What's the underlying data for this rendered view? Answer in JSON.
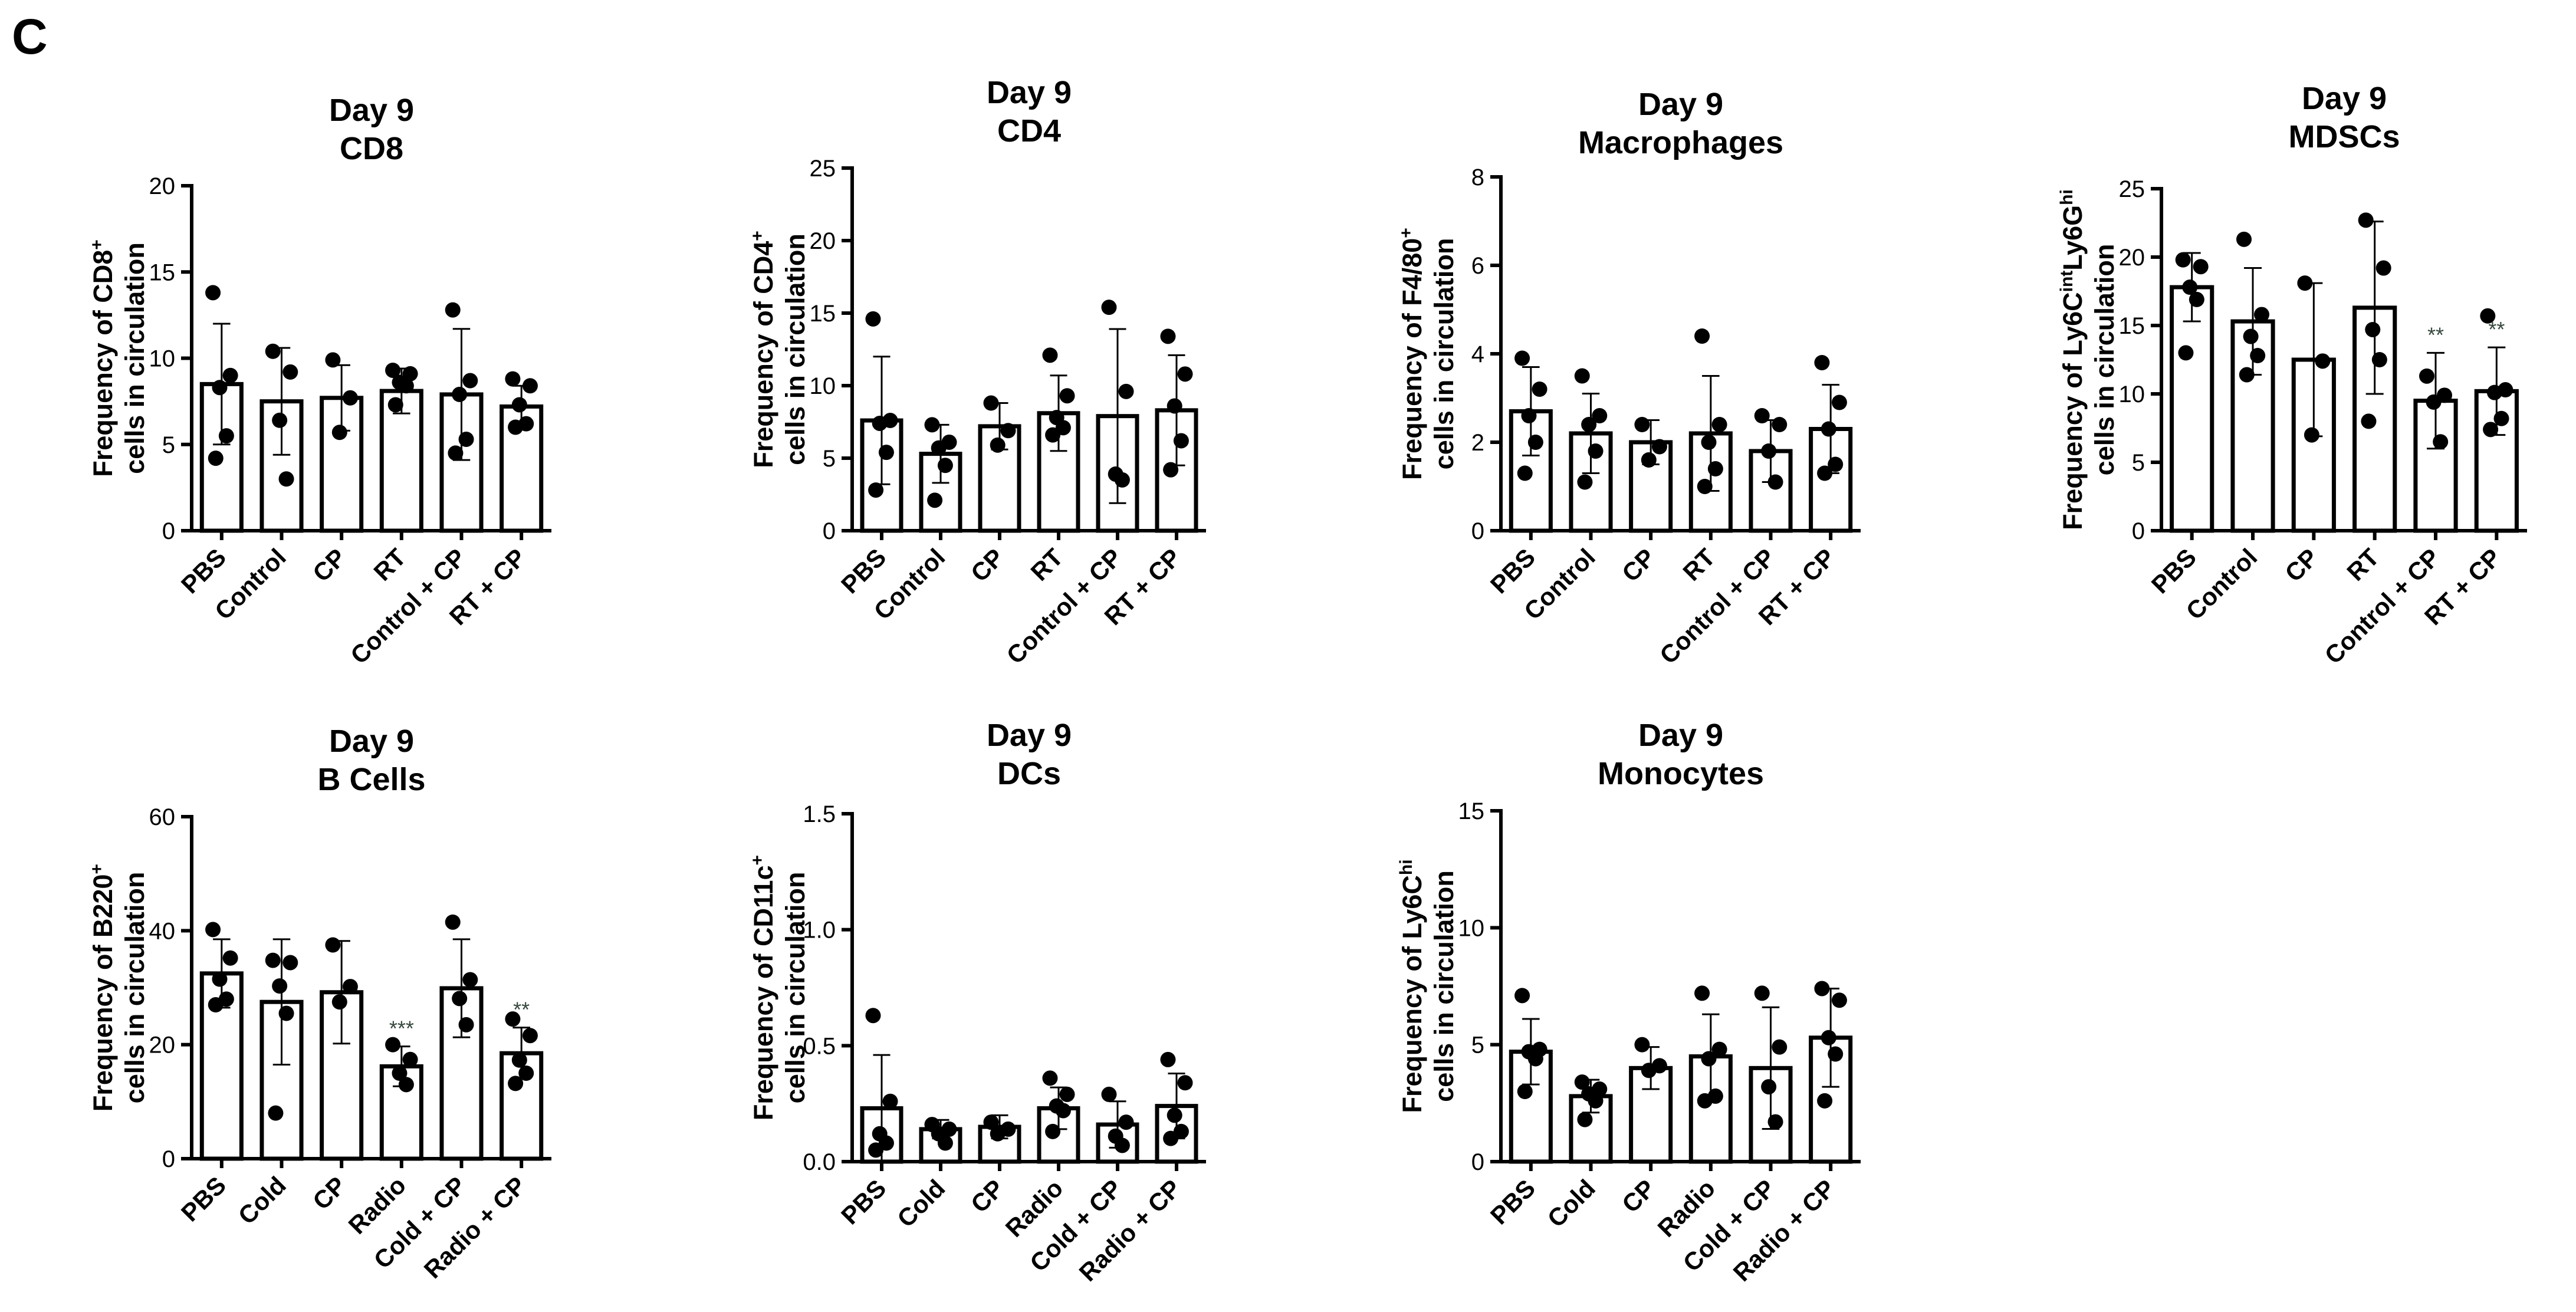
{
  "panel_label": "C",
  "chart_data": [
    {
      "type": "bar",
      "title": "Day 9",
      "subtitle": "CD8",
      "ylabel": [
        "Frequency of CD8",
        "cells in circulation"
      ],
      "ylabel_sup": "+",
      "ylim": [
        0,
        20
      ],
      "yticks": [
        0,
        5,
        10,
        15,
        20
      ],
      "categories": [
        "PBS",
        "Control",
        "CP",
        "RT",
        "Control + CP",
        "RT + CP"
      ],
      "values": [
        8.5,
        7.5,
        7.7,
        8.1,
        7.9,
        7.2
      ],
      "error": [
        3.5,
        3.1,
        1.9,
        1.3,
        3.8,
        1.2
      ],
      "points": [
        [
          13.8,
          9.0,
          8.3,
          5.5,
          4.2
        ],
        [
          10.4,
          9.2,
          6.4,
          3.0
        ],
        [
          9.9,
          7.7,
          5.7
        ],
        [
          9.3,
          9.1,
          8.6,
          8.4,
          7.3
        ],
        [
          12.8,
          8.7,
          7.9,
          5.3,
          4.5
        ],
        [
          8.8,
          8.4,
          7.3,
          6.2,
          6.0
        ]
      ],
      "significance": [
        "",
        "",
        "",
        "",
        "",
        ""
      ]
    },
    {
      "type": "bar",
      "title": "Day 9",
      "subtitle": "CD4",
      "ylabel": [
        "Frequency of CD4",
        "cells in circulation"
      ],
      "ylabel_sup": "+",
      "ylim": [
        0,
        25
      ],
      "yticks": [
        0,
        5,
        10,
        15,
        20,
        25
      ],
      "categories": [
        "PBS",
        "Control",
        "CP",
        "RT",
        "Control + CP",
        "RT + CP"
      ],
      "values": [
        7.6,
        5.3,
        7.2,
        8.1,
        7.9,
        8.3
      ],
      "error": [
        4.4,
        2.0,
        1.6,
        2.6,
        6.0,
        3.8
      ],
      "points": [
        [
          14.6,
          7.6,
          7.4,
          5.4,
          2.8
        ],
        [
          7.3,
          6.1,
          5.7,
          4.5,
          2.1
        ],
        [
          8.8,
          6.9,
          5.9
        ],
        [
          12.1,
          9.3,
          7.8,
          7.1,
          6.6
        ],
        [
          15.4,
          9.6,
          3.9,
          3.5
        ],
        [
          13.4,
          10.8,
          8.6,
          6.2,
          4.2
        ]
      ],
      "significance": [
        "",
        "",
        "",
        "",
        "",
        ""
      ]
    },
    {
      "type": "bar",
      "title": "Day 9",
      "subtitle": "Macrophages",
      "ylabel": [
        "Frequency of F4/80",
        "cells in circulation"
      ],
      "ylabel_sup": "+",
      "ylim": [
        0,
        8
      ],
      "yticks": [
        0,
        2,
        4,
        6,
        8
      ],
      "categories": [
        "PBS",
        "Control",
        "CP",
        "RT",
        "Control + CP",
        "RT + CP"
      ],
      "values": [
        2.7,
        2.2,
        2.0,
        2.2,
        1.8,
        2.3
      ],
      "error": [
        1.0,
        0.9,
        0.5,
        1.3,
        0.7,
        1.0
      ],
      "points": [
        [
          3.9,
          3.2,
          2.6,
          2.0,
          1.3
        ],
        [
          3.5,
          2.6,
          2.4,
          1.8,
          1.1
        ],
        [
          2.4,
          1.9,
          1.6
        ],
        [
          4.4,
          2.4,
          2.0,
          1.4,
          1.0
        ],
        [
          2.6,
          2.4,
          1.8,
          1.1
        ],
        [
          3.8,
          2.9,
          2.3,
          1.5,
          1.3
        ]
      ],
      "significance": [
        "",
        "",
        "",
        "",
        "",
        ""
      ]
    },
    {
      "type": "bar",
      "title": "Day 9",
      "subtitle": "MDSCs",
      "ylabel": [
        "Frequency of Ly6C",
        "cells in circulation"
      ],
      "ylabel_parts": [
        "int",
        "Ly6G",
        "hi"
      ],
      "ylim": [
        0,
        25
      ],
      "yticks": [
        0,
        5,
        10,
        15,
        20,
        25
      ],
      "categories": [
        "PBS",
        "Control",
        "CP",
        "RT",
        "Control + CP",
        "RT + CP"
      ],
      "values": [
        17.8,
        15.3,
        12.5,
        16.3,
        9.5,
        10.2
      ],
      "error": [
        2.5,
        3.9,
        5.6,
        6.3,
        3.5,
        3.2
      ],
      "points": [
        [
          19.8,
          19.3,
          17.8,
          16.9,
          13.0
        ],
        [
          21.3,
          15.8,
          14.2,
          12.8,
          11.4
        ],
        [
          18.1,
          12.4,
          7.0
        ],
        [
          22.7,
          19.2,
          14.7,
          12.5,
          8.0
        ],
        [
          11.3,
          9.9,
          9.4,
          6.5
        ],
        [
          15.7,
          10.3,
          10.1,
          8.2,
          7.4
        ]
      ],
      "significance": [
        "",
        "",
        "",
        "",
        "**",
        "**"
      ]
    },
    {
      "type": "bar",
      "title": "Day 9",
      "subtitle": "B Cells",
      "ylabel": [
        "Frequency of B220",
        "cells in circulation"
      ],
      "ylabel_sup": "+",
      "ylim": [
        0,
        60
      ],
      "yticks": [
        0,
        20,
        40,
        60
      ],
      "categories": [
        "PBS",
        "Cold",
        "CP",
        "Radio",
        "Cold + CP",
        "Radio + CP"
      ],
      "values": [
        32.5,
        27.5,
        29.2,
        16.2,
        29.9,
        18.5
      ],
      "error": [
        6.0,
        11.0,
        9.0,
        3.5,
        8.6,
        4.5
      ],
      "points": [
        [
          40.2,
          35.2,
          31.5,
          28.0,
          27.0
        ],
        [
          34.8,
          34.4,
          30.3,
          25.5,
          8.0
        ],
        [
          37.5,
          30.2,
          27.5
        ],
        [
          20.0,
          17.4,
          15.0,
          13.0
        ],
        [
          41.5,
          31.4,
          28.1,
          23.5
        ],
        [
          24.5,
          21.6,
          17.3,
          15.0,
          13.2
        ]
      ],
      "significance": [
        "",
        "",
        "",
        "***",
        "",
        "**"
      ]
    },
    {
      "type": "bar",
      "title": "Day 9",
      "subtitle": "DCs",
      "ylabel": [
        "Frequency of CD11c",
        "cells in circulation"
      ],
      "ylabel_sup": "+",
      "ylim": [
        0,
        1.5
      ],
      "yticks": [
        0.0,
        0.5,
        1.0,
        1.5
      ],
      "ytick_labels": [
        "0.0",
        "0.5",
        "1.0",
        "1.5"
      ],
      "categories": [
        "PBS",
        "Cold",
        "CP",
        "Radio",
        "Cold + CP",
        "Radio + CP"
      ],
      "values": [
        0.23,
        0.14,
        0.15,
        0.23,
        0.16,
        0.24
      ],
      "error": [
        0.23,
        0.04,
        0.05,
        0.09,
        0.1,
        0.14
      ],
      "points": [
        [
          0.63,
          0.26,
          0.12,
          0.08,
          0.05
        ],
        [
          0.16,
          0.14,
          0.12,
          0.08
        ],
        [
          0.17,
          0.14,
          0.12
        ],
        [
          0.36,
          0.29,
          0.24,
          0.22,
          0.13
        ],
        [
          0.29,
          0.17,
          0.11,
          0.07
        ],
        [
          0.44,
          0.34,
          0.2,
          0.13,
          0.1
        ]
      ],
      "significance": [
        "",
        "",
        "",
        "",
        "",
        ""
      ]
    },
    {
      "type": "bar",
      "title": "Day 9",
      "subtitle": "Monocytes",
      "ylabel": [
        "Frequency of Ly6C",
        "cells in circulation"
      ],
      "ylabel_sup": "hi",
      "ylim": [
        0,
        15
      ],
      "yticks": [
        0,
        5,
        10,
        15
      ],
      "categories": [
        "PBS",
        "Cold",
        "CP",
        "Radio",
        "Cold + CP",
        "Radio + CP"
      ],
      "values": [
        4.7,
        2.8,
        4.0,
        4.5,
        4.0,
        5.3
      ],
      "error": [
        1.4,
        0.7,
        0.9,
        1.8,
        2.6,
        2.1
      ],
      "points": [
        [
          7.1,
          4.8,
          4.7,
          4.4,
          3.0
        ],
        [
          3.4,
          3.1,
          2.9,
          2.6,
          1.8
        ],
        [
          5.0,
          4.1,
          3.9
        ],
        [
          7.2,
          4.8,
          4.4,
          2.8,
          2.6
        ],
        [
          7.2,
          4.9,
          3.2,
          1.7
        ],
        [
          7.4,
          6.9,
          5.3,
          4.6,
          2.6
        ]
      ],
      "significance": [
        "",
        "",
        "",
        "",
        "",
        ""
      ]
    }
  ]
}
